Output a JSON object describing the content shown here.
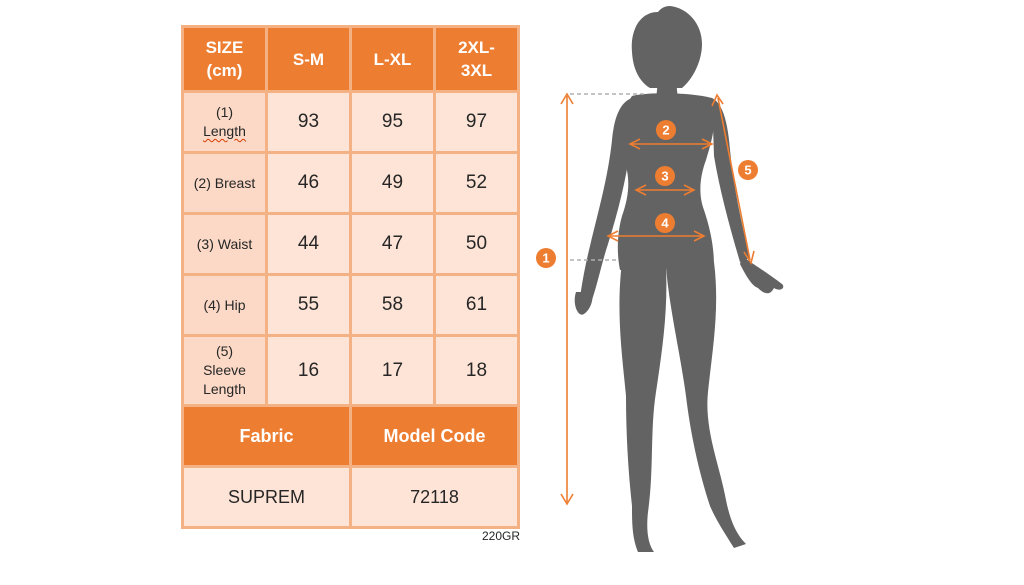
{
  "table": {
    "header": [
      "SIZE\n(cm)",
      "S-M",
      "L-XL",
      "2XL-\n3XL"
    ],
    "rows": [
      {
        "label": "(1)\nLength",
        "values": [
          "93",
          "95",
          "97"
        ]
      },
      {
        "label": "(2) Breast",
        "values": [
          "46",
          "49",
          "52"
        ]
      },
      {
        "label": "(3) Waist",
        "values": [
          "44",
          "47",
          "50"
        ]
      },
      {
        "label": "(4) Hip",
        "values": [
          "55",
          "58",
          "61"
        ]
      },
      {
        "label": "(5)\nSleeve\nLength",
        "values": [
          "16",
          "17",
          "18"
        ]
      }
    ],
    "fabric_label": "Fabric",
    "model_code_label": "Model Code",
    "fabric_value": "SUPREM",
    "model_code_value": "72118"
  },
  "weight_note": "220GR",
  "markers": [
    "1",
    "2",
    "3",
    "4",
    "5"
  ],
  "colors": {
    "accent": "#ed7d31",
    "cell_light": "#fde4d6",
    "grid": "#f4b183",
    "silhouette": "#636363"
  }
}
